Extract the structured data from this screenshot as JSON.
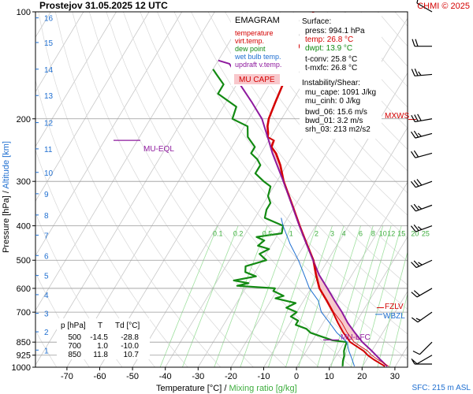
{
  "header": {
    "title": "Prostejov    31.05.2025 12 UTC",
    "credit": "CHMI © 2025"
  },
  "axes": {
    "xlabel_prefix": "Temperature [°C]  /  ",
    "xlabel_mixing": "Mixing ratio [g/kg]",
    "ylabel_pressure": "Pressure [hPa]  /  ",
    "ylabel_altitude": "Altitude [km]",
    "sfc": "SFC: 215 m ASL"
  },
  "legend": {
    "title": "EMAGRAM",
    "items": [
      {
        "label": "temperature",
        "color": "#d40000"
      },
      {
        "label": "virt.temp.",
        "color": "#d40000"
      },
      {
        "label": "dew point",
        "color": "#138a13"
      },
      {
        "label": "wet bulb temp.",
        "color": "#1f6fd1"
      },
      {
        "label": "updraft v.temp.",
        "color": "#8e1a9e"
      }
    ],
    "mucape_label": "MU CAPE"
  },
  "stats": {
    "surface_title": "Surface:",
    "press": "press: 994.1 hPa",
    "temp": "temp: 26.8 °C",
    "dwpt": "dwpt: 13.9 °C",
    "tconv": "t-conv: 25.8 °C",
    "tmxfc": "t-mxfc: 26.8 °C",
    "instab_title": "Instability/Shear:",
    "mu_cape": "mu_cape: 1091 J/kg",
    "mu_cinh": "mu_cinh: 0 J/kg",
    "bwd_06": "bwd_06: 15.6 m/s",
    "bwd_01": "bwd_01: 3.2 m/s",
    "srh_03": "srh_03: 213 m2/s2"
  },
  "table": {
    "headers": [
      "p [hPa]",
      "T",
      "Td [°C]"
    ],
    "rows": [
      [
        "500",
        "-14.5",
        "-28.8"
      ],
      [
        "700",
        "1.0",
        "-10.0"
      ],
      [
        "850",
        "11.8",
        "10.7"
      ]
    ]
  },
  "labels": {
    "mu_eql": "MU-EQL",
    "mu_lfc": "MU-LFC",
    "mxws": "MXWS",
    "fzlv": "FZLV",
    "wbzl": "WBZL"
  },
  "chart_data": {
    "type": "line",
    "title": "Prostejov    31.05.2025 12 UTC",
    "xlabel": "Temperature [°C]  /  Mixing ratio [g/kg]",
    "ylabel": "Pressure [hPa]  /  Altitude [km]",
    "x_scale": "skewed temperature",
    "y_scale": "log pressure",
    "xlim": [
      -80,
      30
    ],
    "ylim": [
      1000,
      100
    ],
    "x_ticks": [
      -70,
      -60,
      -50,
      -40,
      -30,
      -20,
      -10,
      0,
      10,
      20,
      30
    ],
    "p_ticks": [
      100,
      200,
      300,
      400,
      500,
      600,
      700,
      850,
      925,
      1000
    ],
    "mixing_ratios": [
      0.1,
      0.2,
      0.5,
      1,
      2,
      3,
      4,
      6,
      8,
      10,
      12,
      15,
      20,
      25
    ],
    "mixing_ratio_labels": [
      "0.1",
      "0.2",
      "0.5",
      "1",
      "2",
      "3",
      "4",
      "6",
      "8",
      "10",
      "12",
      "15",
      "20",
      "25"
    ],
    "altitude_km": [
      {
        "km": "1",
        "p": 895
      },
      {
        "km": "2",
        "p": 795
      },
      {
        "km": "3",
        "p": 705
      },
      {
        "km": "4",
        "p": 625
      },
      {
        "km": "5",
        "p": 552
      },
      {
        "km": "6",
        "p": 485
      },
      {
        "km": "7",
        "p": 425
      },
      {
        "km": "8",
        "p": 373
      },
      {
        "km": "9",
        "p": 325
      },
      {
        "km": "10",
        "p": 283
      },
      {
        "km": "11",
        "p": 243
      },
      {
        "km": "12",
        "p": 205
      },
      {
        "km": "13",
        "p": 172
      },
      {
        "km": "14",
        "p": 145
      },
      {
        "km": "15",
        "p": 122
      },
      {
        "km": "16",
        "p": 104
      }
    ],
    "series": [
      {
        "name": "temperature",
        "color": "#d40000",
        "points": [
          [
            994,
            26.8
          ],
          [
            950,
            22
          ],
          [
            925,
            19.5
          ],
          [
            900,
            17.5
          ],
          [
            850,
            11.8
          ],
          [
            800,
            8
          ],
          [
            750,
            4.5
          ],
          [
            700,
            1.0
          ],
          [
            650,
            -3
          ],
          [
            600,
            -7.5
          ],
          [
            550,
            -11
          ],
          [
            500,
            -14.5
          ],
          [
            450,
            -19.5
          ],
          [
            400,
            -25
          ],
          [
            350,
            -31
          ],
          [
            300,
            -38
          ],
          [
            270,
            -42
          ],
          [
            250,
            -45.5
          ],
          [
            240,
            -48
          ],
          [
            230,
            -48.5
          ],
          [
            225,
            -51
          ],
          [
            220,
            -51.5
          ],
          [
            210,
            -53
          ],
          [
            200,
            -54
          ],
          [
            180,
            -55
          ],
          [
            160,
            -56
          ],
          [
            140,
            -57
          ],
          [
            130,
            -58
          ],
          [
            120,
            -58
          ],
          [
            110,
            -59
          ],
          [
            100,
            -60
          ]
        ]
      },
      {
        "name": "dew point",
        "color": "#138a13",
        "points": [
          [
            994,
            13.9
          ],
          [
            960,
            13
          ],
          [
            930,
            12.5
          ],
          [
            900,
            11.5
          ],
          [
            870,
            11
          ],
          [
            850,
            10.7
          ],
          [
            840,
            6
          ],
          [
            820,
            2
          ],
          [
            800,
            -2
          ],
          [
            780,
            -4
          ],
          [
            760,
            -8
          ],
          [
            740,
            -8
          ],
          [
            720,
            -11
          ],
          [
            700,
            -10
          ],
          [
            680,
            -14
          ],
          [
            660,
            -12
          ],
          [
            640,
            -19
          ],
          [
            630,
            -17
          ],
          [
            610,
            -21
          ],
          [
            600,
            -21
          ],
          [
            590,
            -33
          ],
          [
            580,
            -30
          ],
          [
            570,
            -35
          ],
          [
            555,
            -29
          ],
          [
            540,
            -33
          ],
          [
            520,
            -34
          ],
          [
            500,
            -28.8
          ],
          [
            480,
            -32
          ],
          [
            465,
            -30
          ],
          [
            455,
            -34
          ],
          [
            440,
            -33
          ],
          [
            430,
            -36
          ],
          [
            420,
            -29
          ],
          [
            400,
            -30
          ],
          [
            380,
            -37
          ],
          [
            360,
            -38
          ],
          [
            345,
            -38
          ],
          [
            330,
            -40
          ],
          [
            310,
            -41
          ],
          [
            300,
            -44
          ],
          [
            285,
            -48
          ],
          [
            270,
            -48
          ],
          [
            260,
            -50
          ],
          [
            250,
            -53
          ],
          [
            240,
            -53
          ],
          [
            225,
            -57
          ],
          [
            210,
            -59
          ],
          [
            200,
            -65
          ],
          [
            185,
            -66
          ],
          [
            170,
            -74
          ],
          [
            160,
            -74
          ],
          [
            150,
            -78
          ],
          [
            145,
            -80
          ]
        ]
      },
      {
        "name": "wet bulb temp.",
        "color": "#1f6fd1",
        "points": [
          [
            994,
            17.5
          ],
          [
            950,
            15.5
          ],
          [
            900,
            13
          ],
          [
            850,
            10.8
          ],
          [
            800,
            6
          ],
          [
            750,
            2
          ],
          [
            700,
            -2.5
          ],
          [
            650,
            -5.5
          ],
          [
            600,
            -10.5
          ],
          [
            550,
            -14.5
          ],
          [
            500,
            -19
          ],
          [
            450,
            -24.5
          ],
          [
            400,
            -30
          ],
          [
            380,
            -32
          ]
        ]
      },
      {
        "name": "updraft v.temp.",
        "color": "#8e1a9e",
        "points": [
          [
            994,
            27.5
          ],
          [
            950,
            24
          ],
          [
            900,
            20
          ],
          [
            850,
            15.5
          ],
          [
            800,
            11.5
          ],
          [
            750,
            7.5
          ],
          [
            700,
            3.8
          ],
          [
            650,
            -0.5
          ],
          [
            600,
            -5
          ],
          [
            550,
            -10
          ],
          [
            500,
            -14.5
          ],
          [
            450,
            -19.5
          ],
          [
            400,
            -25
          ],
          [
            350,
            -31
          ],
          [
            300,
            -38
          ],
          [
            250,
            -46.5
          ],
          [
            230,
            -50
          ],
          [
            200,
            -56
          ],
          [
            180,
            -62
          ],
          [
            160,
            -69
          ],
          [
            150,
            -72
          ],
          [
            140,
            -76
          ],
          [
            137,
            -80
          ]
        ]
      }
    ],
    "level_markers": [
      {
        "name": "MU-EQL",
        "p": 230
      },
      {
        "name": "MU-LFC",
        "p": 838
      },
      {
        "name": "FZLV",
        "p": 680
      },
      {
        "name": "WBZL",
        "p": 710
      },
      {
        "name": "MXWS",
        "p": 205
      }
    ],
    "wind_barbs": [
      {
        "p": 994,
        "dir": 270,
        "speed_kt": 5
      },
      {
        "p": 925,
        "dir": 240,
        "speed_kt": 10
      },
      {
        "p": 850,
        "dir": 225,
        "speed_kt": 10
      },
      {
        "p": 700,
        "dir": 235,
        "speed_kt": 15
      },
      {
        "p": 600,
        "dir": 240,
        "speed_kt": 20
      },
      {
        "p": 500,
        "dir": 245,
        "speed_kt": 25
      },
      {
        "p": 400,
        "dir": 250,
        "speed_kt": 25
      },
      {
        "p": 350,
        "dir": 250,
        "speed_kt": 25
      },
      {
        "p": 300,
        "dir": 250,
        "speed_kt": 30
      },
      {
        "p": 250,
        "dir": 255,
        "speed_kt": 20
      },
      {
        "p": 220,
        "dir": 255,
        "speed_kt": 25
      },
      {
        "p": 200,
        "dir": 260,
        "speed_kt": 30
      },
      {
        "p": 150,
        "dir": 265,
        "speed_kt": 25
      },
      {
        "p": 125,
        "dir": 270,
        "speed_kt": 20
      },
      {
        "p": 100,
        "dir": 300,
        "speed_kt": 10
      }
    ]
  }
}
